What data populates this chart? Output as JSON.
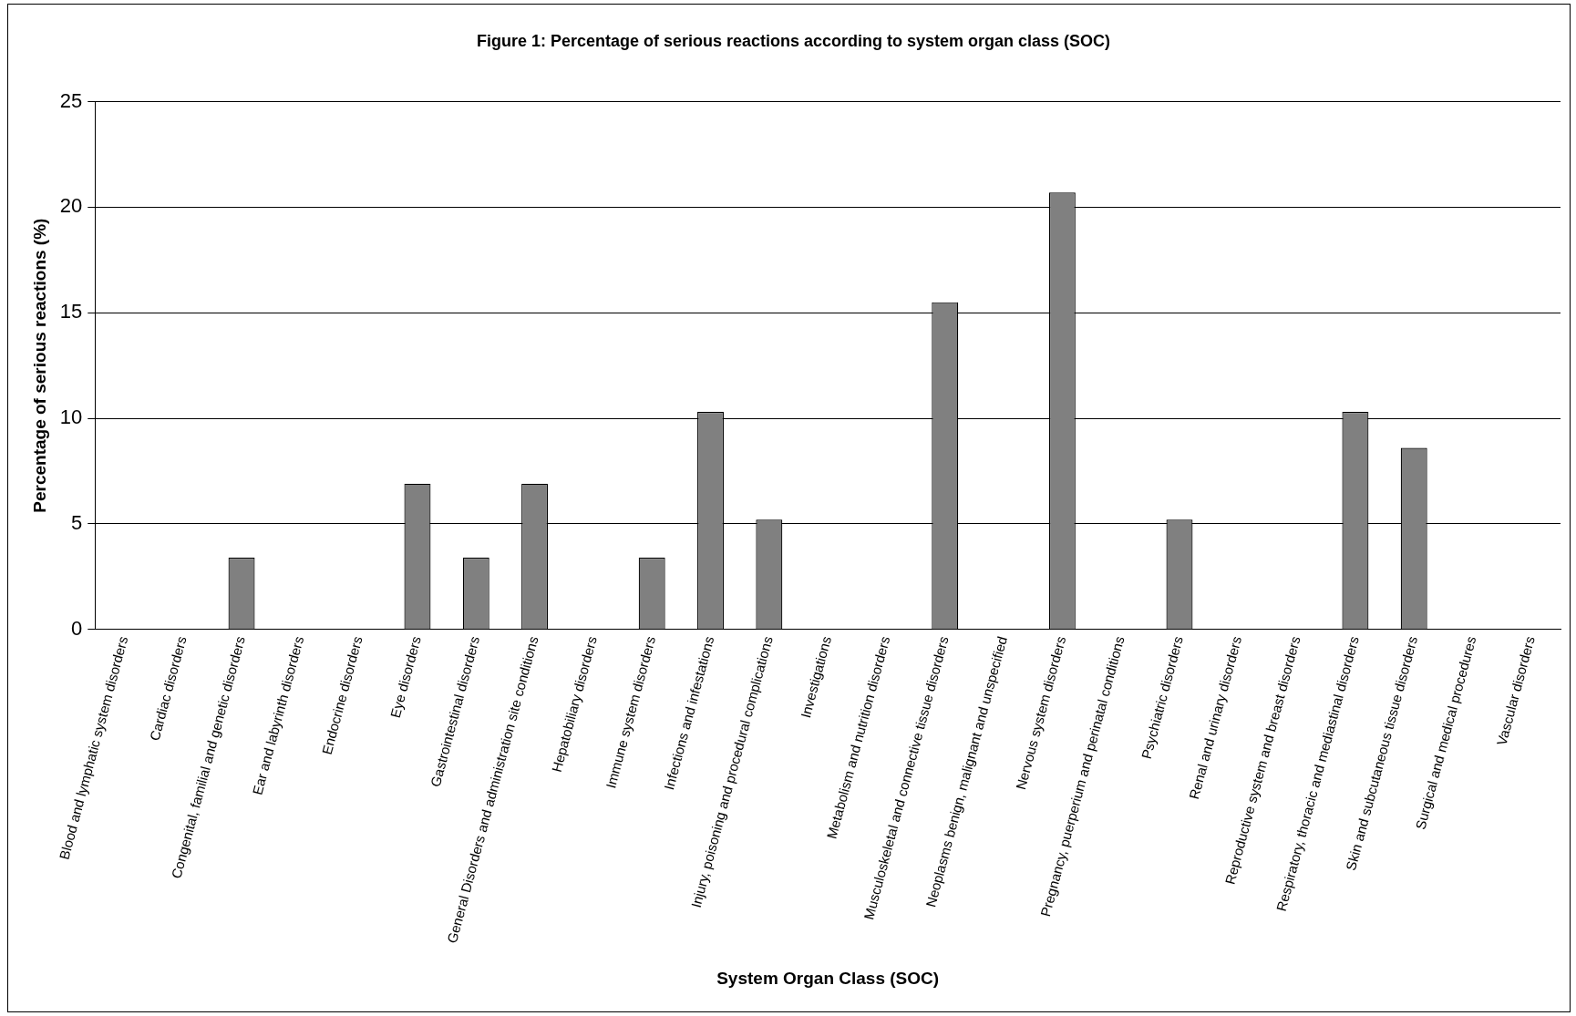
{
  "chart_data": {
    "type": "bar",
    "title": "Figure 1: Percentage of serious reactions according to system organ class (SOC)",
    "xlabel": "System Organ Class (SOC)",
    "ylabel": "Percentage of serious reactions (%)",
    "categories": [
      "Blood and lymphatic system disorders",
      "Cardiac disorders",
      "Congenital, familial and genetic disorders",
      "Ear and labyrinth disorders",
      "Endocrine disorders",
      "Eye disorders",
      "Gastrointestinal disorders",
      "General Disorders and administration site conditions",
      "Hepatobiliary disorders",
      "Immune system disorders",
      "Infections and infestations",
      "Injury, poisoning and procedural complications",
      "Investigations",
      "Metabolism and nutrition disorders",
      "Musculoskeletal and connective tissue disorders",
      "Neoplasms benign, malignant and unspecified",
      "Nervous system disorders",
      "Pregnancy, puerperium and perinatal conditions",
      "Psychiatric disorders",
      "Renal and urinary disorders",
      "Reproductive system and breast disorders",
      "Respiratory, thoracic and mediastinal disorders",
      "Skin and subcutaneous tissue disorders",
      "Surgical and medical procedures",
      "Vascular disorders"
    ],
    "values": [
      0,
      0,
      3.4,
      0,
      0,
      6.9,
      3.4,
      6.9,
      0,
      3.4,
      10.3,
      5.2,
      0,
      0,
      15.5,
      0,
      20.7,
      0,
      5.2,
      0,
      0,
      10.3,
      8.6,
      0,
      0
    ],
    "color": "#808080",
    "ylim": [
      0,
      25
    ],
    "yticks": [
      0,
      5,
      10,
      15,
      20,
      25
    ],
    "grid": "y",
    "legend": false
  }
}
